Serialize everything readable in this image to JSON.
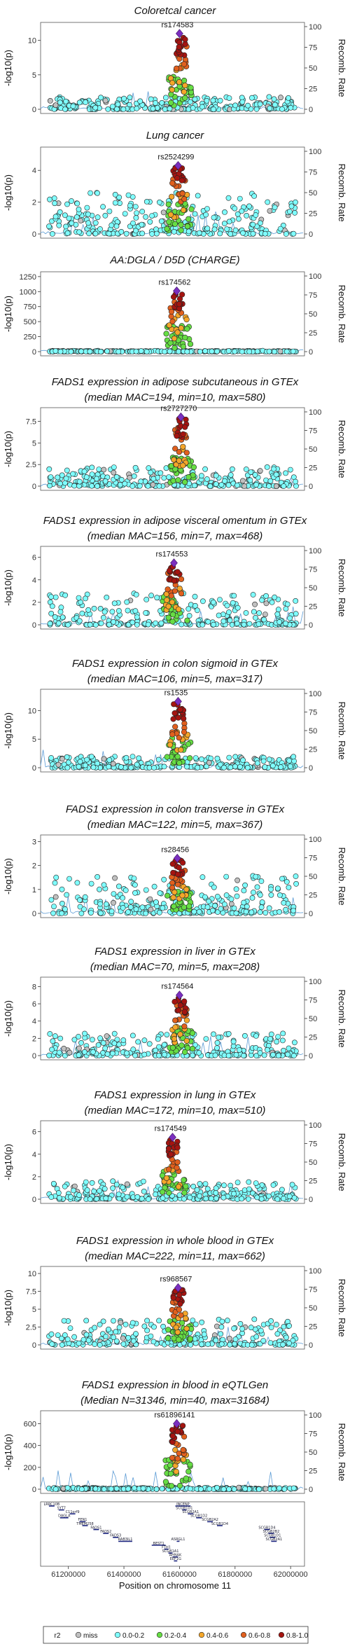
{
  "r2_colors": {
    "miss": "#c0c0c0",
    "0.0-0.2": "#7fffff",
    "0.2-0.4": "#66dd44",
    "0.4-0.6": "#f4a62a",
    "0.6-0.8": "#e1601e",
    "0.8-1.0": "#a51410"
  },
  "chart_data": [
    {
      "type": "scatter",
      "title": "Coloretcal cancer",
      "lead": "rs174583",
      "ylabel": "-log10(p)",
      "y2label": "Recomb. Rate",
      "ylim": [
        0,
        12
      ],
      "yticks": [
        0,
        5,
        10
      ],
      "y2ticks": [
        0,
        25,
        50,
        75,
        100
      ],
      "lead_x": 61600000,
      "lead_y": 11.0,
      "bg_max": 1.8
    },
    {
      "type": "scatter",
      "title": "Lung cancer",
      "lead": "rs2524299",
      "ylabel": "-log10(p)",
      "y2label": "Recomb. Rate",
      "ylim": [
        0,
        5.2
      ],
      "yticks": [
        0,
        2,
        4
      ],
      "y2ticks": [
        0,
        25,
        50,
        75,
        100
      ],
      "lead_x": 61595000,
      "lead_y": 4.3,
      "bg_max": 2.6
    },
    {
      "type": "scatter",
      "title": "AA:DGLA / D5D (CHARGE)",
      "lead": "rs174562",
      "ylabel": "-log10(p)",
      "y2label": "Recomb. Rate",
      "ylim": [
        0,
        1260
      ],
      "yticks": [
        0,
        250,
        500,
        750,
        1000,
        1250
      ],
      "y2ticks": [
        0,
        25,
        50,
        75,
        100
      ],
      "lead_x": 61590000,
      "lead_y": 1010,
      "bg_max": 15
    },
    {
      "type": "scatter",
      "title": "FADS1 expression in adipose subcutaneous in GTEx",
      "subtitle": "(median MAC=194, min=10, max=580)",
      "lead": "rs2727270",
      "ylabel": "-log10(p)",
      "y2label": "Recomb. Rate",
      "ylim": [
        0,
        8.6
      ],
      "yticks": [
        0.0,
        2.5,
        5.0,
        7.5
      ],
      "y2ticks": [
        0,
        25,
        50,
        75,
        100
      ],
      "lead_x": 61605000,
      "lead_y": 8.0,
      "bg_max": 2.2
    },
    {
      "type": "scatter",
      "title": "FADS1 expression in adipose visceral omentum in GTEx",
      "subtitle": "(median MAC=156, min=7, max=468)",
      "lead": "rs174553",
      "ylabel": "-log10(p)",
      "y2label": "Recomb. Rate",
      "ylim": [
        0,
        6.6
      ],
      "yticks": [
        0,
        2,
        4,
        6
      ],
      "y2ticks": [
        0,
        25,
        50,
        75,
        100
      ],
      "lead_x": 61580000,
      "lead_y": 5.5,
      "bg_max": 2.8
    },
    {
      "type": "scatter",
      "title": "FADS1 expression in colon sigmoid in GTEx",
      "subtitle": "(median MAC=106, min=5, max=317)",
      "lead": "rs1535",
      "ylabel": "-log10(p)",
      "y2label": "Recomb. Rate",
      "ylim": [
        0,
        13
      ],
      "yticks": [
        0,
        5,
        10
      ],
      "y2ticks": [
        0,
        25,
        50,
        75,
        100
      ],
      "lead_x": 61595000,
      "lead_y": 11.6,
      "bg_max": 2.0
    },
    {
      "type": "scatter",
      "title": "FADS1 expression in colon transverse in GTEx",
      "subtitle": "(median MAC=122, min=5, max=367)",
      "lead": "rs28456",
      "ylabel": "-log10(p)",
      "y2label": "Recomb. Rate",
      "ylim": [
        0,
        3.1
      ],
      "yticks": [
        0,
        1,
        2,
        3
      ],
      "y2ticks": [
        0,
        25,
        50,
        75,
        100
      ],
      "lead_x": 61592000,
      "lead_y": 2.3,
      "bg_max": 1.6
    },
    {
      "type": "scatter",
      "title": "FADS1 expression in liver in GTEx",
      "subtitle": "(median MAC=70, min=5, max=208)",
      "lead": "rs174564",
      "ylabel": "-log10(p)",
      "y2label": "Recomb. Rate",
      "ylim": [
        0,
        8.6
      ],
      "yticks": [
        0,
        2,
        4,
        6,
        8
      ],
      "y2ticks": [
        0,
        25,
        50,
        75,
        100
      ],
      "lead_x": 61600000,
      "lead_y": 7.0,
      "bg_max": 2.6
    },
    {
      "type": "scatter",
      "title": "FADS1 expression in lung in GTEx",
      "subtitle": "(median MAC=172, min=10, max=510)",
      "lead": "rs174549",
      "ylabel": "-log10(p)",
      "y2label": "Recomb. Rate",
      "ylim": [
        0,
        6.6
      ],
      "yticks": [
        0,
        2,
        4,
        6
      ],
      "y2ticks": [
        0,
        25,
        50,
        75,
        100
      ],
      "lead_x": 61575000,
      "lead_y": 5.5,
      "bg_max": 1.6
    },
    {
      "type": "scatter",
      "title": "FADS1 expression in whole blood in GTEx",
      "subtitle": "(median MAC=222, min=11, max=662)",
      "lead": "rs968567",
      "ylabel": "-log10(p)",
      "y2label": "Recomb. Rate",
      "ylim": [
        0,
        10.4
      ],
      "yticks": [
        0.0,
        2.5,
        5.0,
        7.5,
        10.0
      ],
      "y2ticks": [
        0,
        25,
        50,
        75,
        100
      ],
      "lead_x": 61595000,
      "lead_y": 8.0,
      "bg_max": 3.6
    },
    {
      "type": "scatter",
      "title": "FADS1 expression in blood in eQTLGen",
      "subtitle": "(Median N=31346, min=40, max=31684)",
      "lead": "rs61896141",
      "ylabel": "-log10(p)",
      "y2label": "Recomb. Rate",
      "ylim": [
        0,
        680
      ],
      "yticks": [
        0,
        200,
        400,
        600
      ],
      "y2ticks": [
        0,
        25,
        50,
        75,
        100
      ],
      "lead_x": 61590000,
      "lead_y": 600,
      "bg_max": 15
    }
  ],
  "gene_track": {
    "genes": [
      {
        "name": "LRRC10B",
        "start": 61130000,
        "end": 61150000,
        "row": 0
      },
      {
        "name": "SYT7",
        "start": 61165000,
        "end": 61185000,
        "row": 1
      },
      {
        "name": "DAGLA",
        "start": 61170000,
        "end": 61200000,
        "row": 3
      },
      {
        "name": "C11orf9",
        "start": 61205000,
        "end": 61225000,
        "row": 2
      },
      {
        "name": "FEN1",
        "start": 61240000,
        "end": 61262000,
        "row": 4
      },
      {
        "name": "TMEM258",
        "start": 61250000,
        "end": 61270000,
        "row": 5
      },
      {
        "name": "FADS1",
        "start": 61290000,
        "end": 61310000,
        "row": 6
      },
      {
        "name": "FADS2",
        "start": 61325000,
        "end": 61345000,
        "row": 7
      },
      {
        "name": "FADS3",
        "start": 61360000,
        "end": 61380000,
        "row": 8
      },
      {
        "name": "RAB3IL1",
        "start": 61380000,
        "end": 61430000,
        "row": 9
      },
      {
        "name": "BEST1",
        "start": 61500000,
        "end": 61550000,
        "row": 10
      },
      {
        "name": "FTH1",
        "start": 61545000,
        "end": 61560000,
        "row": 11
      },
      {
        "name": "INCENP",
        "start": 61585000,
        "end": 61640000,
        "row": 0
      },
      {
        "name": "SCGB1D1",
        "start": 61610000,
        "end": 61625000,
        "row": 1
      },
      {
        "name": "SCGB2A1",
        "start": 61630000,
        "end": 61650000,
        "row": 2
      },
      {
        "name": "SCGB1D2",
        "start": 61660000,
        "end": 61680000,
        "row": 3
      },
      {
        "name": "SCGB2A2",
        "start": 61700000,
        "end": 61720000,
        "row": 4
      },
      {
        "name": "SCGB1D4",
        "start": 61735000,
        "end": 61755000,
        "row": 5
      },
      {
        "name": "ASRGL1",
        "start": 61590000,
        "end": 61600000,
        "row": 9
      },
      {
        "name": "SCGB1A1",
        "start": 61560000,
        "end": 61575000,
        "row": 12
      },
      {
        "name": "AHNAK",
        "start": 61575000,
        "end": 61595000,
        "row": 13
      },
      {
        "name": "EEF1G",
        "start": 61580000,
        "end": 61592000,
        "row": 14
      },
      {
        "name": "SCGB1D4",
        "start": 61905000,
        "end": 61925000,
        "row": 6
      },
      {
        "name": "SCGB2B2",
        "start": 61920000,
        "end": 61940000,
        "row": 7
      },
      {
        "name": "SCGB1D1",
        "start": 61925000,
        "end": 61945000,
        "row": 8
      },
      {
        "name": "SCGB2A1",
        "start": 61930000,
        "end": 61950000,
        "row": 9
      }
    ],
    "xticks": [
      61200000,
      61400000,
      61600000,
      61800000,
      62000000
    ],
    "xlabel": "Position on chromosome 11",
    "xlim": [
      61100000,
      62050000
    ]
  },
  "legend": {
    "title": "r2",
    "items": [
      "miss",
      "0.0-0.2",
      "0.2-0.4",
      "0.4-0.6",
      "0.6-0.8",
      "0.8-1.0"
    ]
  }
}
